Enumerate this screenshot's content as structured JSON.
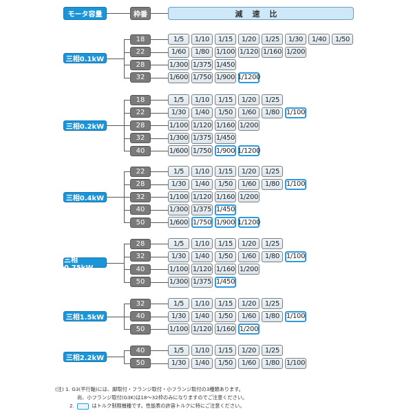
{
  "header": {
    "motor_label": "モータ容量",
    "frame_label": "枠番",
    "ratio_label": "減速比"
  },
  "colors": {
    "motor": "#1b94d8",
    "frame": "#7a7a7a",
    "cell": "#eaf5fc",
    "highlight_border": "#2b9ae0"
  },
  "groups": [
    {
      "motor": "三相0.1kW",
      "rows": [
        {
          "frame": "18",
          "ratios": [
            {
              "v": "1/5"
            },
            {
              "v": "1/10"
            },
            {
              "v": "1/15"
            },
            {
              "v": "1/20"
            },
            {
              "v": "1/25"
            },
            {
              "v": "1/30"
            },
            {
              "v": "1/40"
            },
            {
              "v": "1/50"
            }
          ]
        },
        {
          "frame": "22",
          "ratios": [
            {
              "v": "1/60"
            },
            {
              "v": "1/80"
            },
            {
              "v": "1/100"
            },
            {
              "v": "1/120"
            },
            {
              "v": "1/160"
            },
            {
              "v": "1/200"
            }
          ]
        },
        {
          "frame": "28",
          "ratios": [
            {
              "v": "1/300"
            },
            {
              "v": "1/375"
            },
            {
              "v": "1/450"
            }
          ]
        },
        {
          "frame": "32",
          "ratios": [
            {
              "v": "1/600"
            },
            {
              "v": "1/750"
            },
            {
              "v": "1/900"
            },
            {
              "v": "1/1200",
              "torque_limited": true
            }
          ]
        }
      ]
    },
    {
      "motor": "三相0.2kW",
      "rows": [
        {
          "frame": "18",
          "ratios": [
            {
              "v": "1/5"
            },
            {
              "v": "1/10"
            },
            {
              "v": "1/15"
            },
            {
              "v": "1/20"
            },
            {
              "v": "1/25"
            }
          ]
        },
        {
          "frame": "22",
          "ratios": [
            {
              "v": "1/30"
            },
            {
              "v": "1/40"
            },
            {
              "v": "1/50"
            },
            {
              "v": "1/60"
            },
            {
              "v": "1/80"
            },
            {
              "v": "1/100",
              "torque_limited": true
            }
          ]
        },
        {
          "frame": "28",
          "ratios": [
            {
              "v": "1/100"
            },
            {
              "v": "1/120"
            },
            {
              "v": "1/160"
            },
            {
              "v": "1/200"
            }
          ]
        },
        {
          "frame": "32",
          "ratios": [
            {
              "v": "1/300"
            },
            {
              "v": "1/375"
            },
            {
              "v": "1/450"
            }
          ]
        },
        {
          "frame": "40",
          "ratios": [
            {
              "v": "1/600"
            },
            {
              "v": "1/750"
            },
            {
              "v": "1/900",
              "torque_limited": true
            },
            {
              "v": "1/1200",
              "torque_limited": true
            }
          ]
        }
      ]
    },
    {
      "motor": "三相0.4kW",
      "rows": [
        {
          "frame": "22",
          "ratios": [
            {
              "v": "1/5"
            },
            {
              "v": "1/10"
            },
            {
              "v": "1/15"
            },
            {
              "v": "1/20"
            },
            {
              "v": "1/25"
            }
          ]
        },
        {
          "frame": "28",
          "ratios": [
            {
              "v": "1/30"
            },
            {
              "v": "1/40"
            },
            {
              "v": "1/50"
            },
            {
              "v": "1/60"
            },
            {
              "v": "1/80"
            },
            {
              "v": "1/100",
              "torque_limited": true
            }
          ]
        },
        {
          "frame": "32",
          "ratios": [
            {
              "v": "1/100"
            },
            {
              "v": "1/120"
            },
            {
              "v": "1/160"
            },
            {
              "v": "1/200"
            }
          ]
        },
        {
          "frame": "40",
          "ratios": [
            {
              "v": "1/300"
            },
            {
              "v": "1/375"
            },
            {
              "v": "1/450",
              "torque_limited": true
            }
          ]
        },
        {
          "frame": "50",
          "ratios": [
            {
              "v": "1/600"
            },
            {
              "v": "1/750",
              "torque_limited": true
            },
            {
              "v": "1/900",
              "torque_limited": true
            },
            {
              "v": "1/1200",
              "torque_limited": true
            }
          ]
        }
      ]
    },
    {
      "motor": "三相0.75kW",
      "rows": [
        {
          "frame": "28",
          "ratios": [
            {
              "v": "1/5"
            },
            {
              "v": "1/10"
            },
            {
              "v": "1/15"
            },
            {
              "v": "1/20"
            },
            {
              "v": "1/25"
            }
          ]
        },
        {
          "frame": "32",
          "ratios": [
            {
              "v": "1/30"
            },
            {
              "v": "1/40"
            },
            {
              "v": "1/50"
            },
            {
              "v": "1/60"
            },
            {
              "v": "1/80"
            },
            {
              "v": "1/100",
              "torque_limited": true
            }
          ]
        },
        {
          "frame": "40",
          "ratios": [
            {
              "v": "1/100"
            },
            {
              "v": "1/120"
            },
            {
              "v": "1/160"
            },
            {
              "v": "1/200"
            }
          ]
        },
        {
          "frame": "50",
          "ratios": [
            {
              "v": "1/300"
            },
            {
              "v": "1/375"
            },
            {
              "v": "1/450",
              "torque_limited": true
            }
          ]
        }
      ]
    },
    {
      "motor": "三相1.5kW",
      "rows": [
        {
          "frame": "32",
          "ratios": [
            {
              "v": "1/5"
            },
            {
              "v": "1/10"
            },
            {
              "v": "1/15"
            },
            {
              "v": "1/20"
            },
            {
              "v": "1/25"
            }
          ]
        },
        {
          "frame": "40",
          "ratios": [
            {
              "v": "1/30"
            },
            {
              "v": "1/40"
            },
            {
              "v": "1/50"
            },
            {
              "v": "1/60"
            },
            {
              "v": "1/80"
            },
            {
              "v": "1/100",
              "torque_limited": true
            }
          ]
        },
        {
          "frame": "50",
          "ratios": [
            {
              "v": "1/100"
            },
            {
              "v": "1/120"
            },
            {
              "v": "1/160"
            },
            {
              "v": "1/200",
              "torque_limited": true
            }
          ]
        }
      ]
    },
    {
      "motor": "三相2.2kW",
      "rows": [
        {
          "frame": "40",
          "ratios": [
            {
              "v": "1/5"
            },
            {
              "v": "1/10"
            },
            {
              "v": "1/15"
            },
            {
              "v": "1/20"
            },
            {
              "v": "1/25"
            }
          ]
        },
        {
          "frame": "50",
          "ratios": [
            {
              "v": "1/30"
            },
            {
              "v": "1/40"
            },
            {
              "v": "1/50"
            },
            {
              "v": "1/60"
            },
            {
              "v": "1/80"
            },
            {
              "v": "1/100"
            }
          ]
        }
      ]
    }
  ],
  "notes": {
    "prefix": "(注)",
    "n1_num": "1.",
    "n1_line1": "G3(平行軸)には、脚取付・フランジ取付・小フランジ取付の3種類あります。",
    "n1_line2": "尚、小フランジ取付(G3K)は18〜32枠のみになりますのでご注意ください。",
    "n2_num": "2.",
    "n2_text": "はトルク制限機種です。性能表の許容トルクに特にご注意ください。"
  }
}
